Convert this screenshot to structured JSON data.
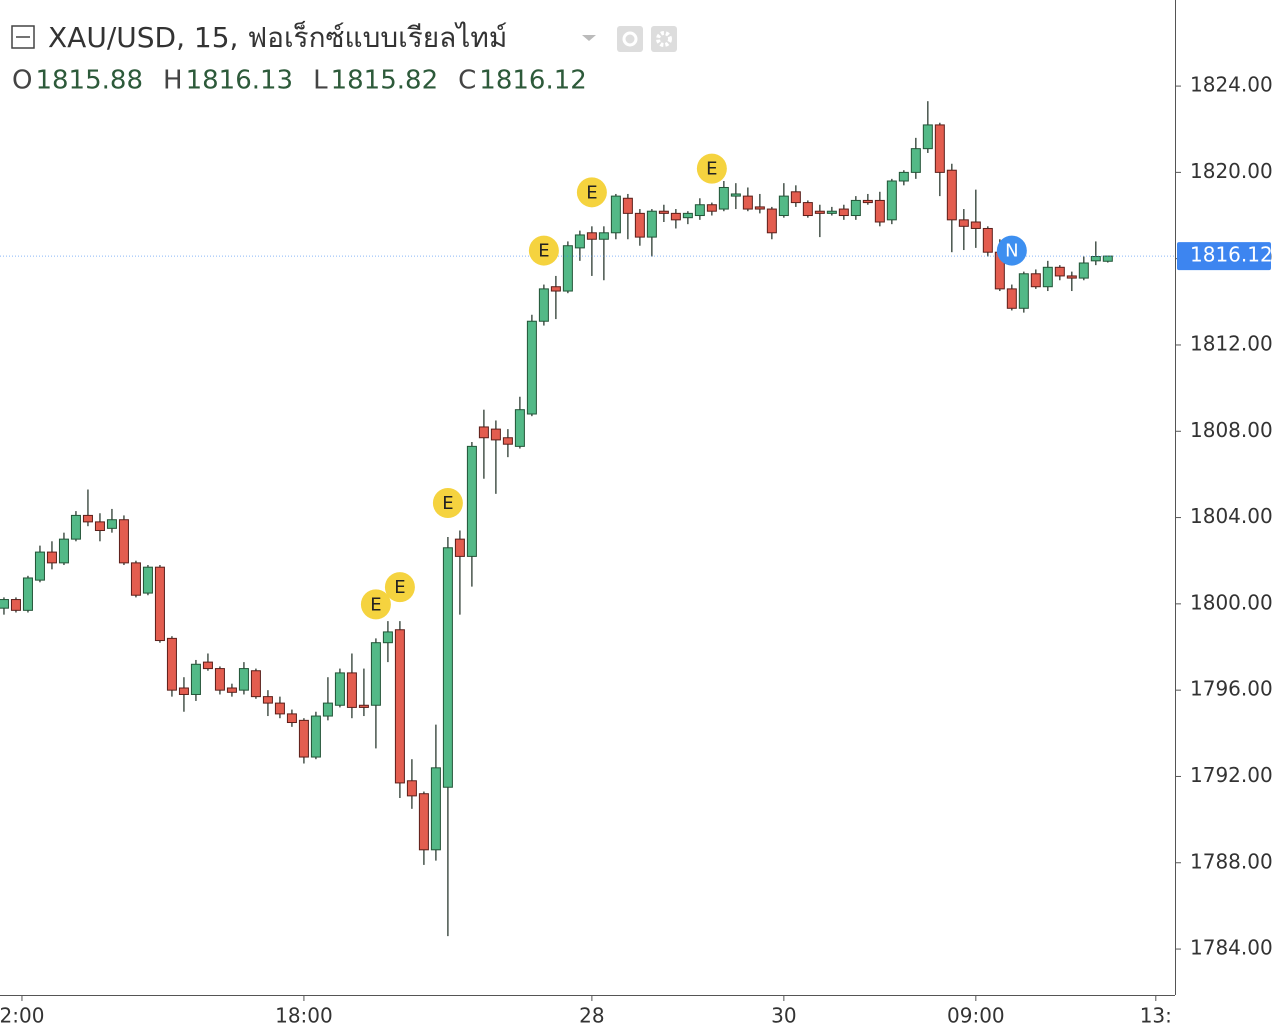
{
  "chart_data": {
    "type": "candlestick",
    "title": "XAU/USD, 15, ฟอเร็กซ์แบบเรียลไทม์",
    "legend": [
      {
        "label": "O",
        "value": 1815.88
      },
      {
        "label": "H",
        "value": 1816.13
      },
      {
        "label": "L",
        "value": 1815.82
      },
      {
        "label": "C",
        "value": 1816.12
      }
    ],
    "up_color": "#53b987",
    "down_color": "#e35d4f",
    "last_price_color": "#3d85f0",
    "ylim": [
      1781.87,
      1827.99
    ],
    "yticks": [
      {
        "value": 1784,
        "label": "1784.00"
      },
      {
        "value": 1788,
        "label": "1788.00"
      },
      {
        "value": 1792,
        "label": "1792.00"
      },
      {
        "value": 1796,
        "label": "1796.00"
      },
      {
        "value": 1800,
        "label": "1800.00"
      },
      {
        "value": 1804,
        "label": "1804.00"
      },
      {
        "value": 1808,
        "label": "1808.00"
      },
      {
        "value": 1812,
        "label": "1812.00"
      },
      {
        "value": 1816,
        "label": "1816.00"
      },
      {
        "value": 1820,
        "label": "1820.00"
      },
      {
        "value": 1824,
        "label": "1824.00"
      }
    ],
    "xlim": [
      -0.33,
      97.6
    ],
    "xticks": [
      {
        "value": 1.5,
        "label": "2:00"
      },
      {
        "value": 25,
        "label": "18:00"
      },
      {
        "value": 49,
        "label": "28"
      },
      {
        "value": 65,
        "label": "30"
      },
      {
        "value": 81,
        "label": "09:00"
      },
      {
        "value": 96,
        "label": "13:"
      }
    ],
    "ohlc": [
      [
        1799.8,
        1800.3,
        1799.5,
        1800.2
      ],
      [
        1800.2,
        1800.3,
        1799.6,
        1799.7
      ],
      [
        1799.7,
        1801.3,
        1799.6,
        1801.2
      ],
      [
        1801.1,
        1802.7,
        1801.0,
        1802.4
      ],
      [
        1802.4,
        1802.9,
        1801.6,
        1801.9
      ],
      [
        1801.9,
        1803.3,
        1801.8,
        1803.0
      ],
      [
        1803.0,
        1804.3,
        1802.9,
        1804.1
      ],
      [
        1804.1,
        1805.3,
        1803.6,
        1803.8
      ],
      [
        1803.8,
        1804.2,
        1802.9,
        1803.4
      ],
      [
        1803.5,
        1804.4,
        1803.3,
        1803.9
      ],
      [
        1803.9,
        1804.1,
        1801.8,
        1801.9
      ],
      [
        1801.9,
        1802.0,
        1800.3,
        1800.4
      ],
      [
        1800.5,
        1801.8,
        1800.4,
        1801.7
      ],
      [
        1801.7,
        1801.8,
        1798.2,
        1798.3
      ],
      [
        1798.4,
        1798.5,
        1795.7,
        1796.0
      ],
      [
        1796.1,
        1796.6,
        1795.0,
        1795.8
      ],
      [
        1795.8,
        1797.4,
        1795.5,
        1797.2
      ],
      [
        1797.3,
        1797.7,
        1796.9,
        1797.0
      ],
      [
        1797.0,
        1797.1,
        1795.8,
        1796.0
      ],
      [
        1796.1,
        1796.3,
        1795.7,
        1795.9
      ],
      [
        1796.0,
        1797.3,
        1795.8,
        1797.0
      ],
      [
        1796.9,
        1797.0,
        1795.6,
        1795.7
      ],
      [
        1795.7,
        1796.0,
        1794.8,
        1795.4
      ],
      [
        1795.4,
        1795.7,
        1794.7,
        1794.9
      ],
      [
        1794.9,
        1795.1,
        1794.3,
        1794.5
      ],
      [
        1794.6,
        1794.7,
        1792.6,
        1792.9
      ],
      [
        1792.9,
        1795.0,
        1792.8,
        1794.8
      ],
      [
        1794.8,
        1796.6,
        1794.6,
        1795.4
      ],
      [
        1795.3,
        1797.0,
        1795.2,
        1796.8
      ],
      [
        1796.8,
        1797.7,
        1794.7,
        1795.2
      ],
      [
        1795.3,
        1797.0,
        1794.8,
        1795.2
      ],
      [
        1795.3,
        1798.4,
        1793.3,
        1798.2
      ],
      [
        1798.2,
        1799.2,
        1797.3,
        1798.7
      ],
      [
        1798.8,
        1799.2,
        1791.0,
        1791.7
      ],
      [
        1791.8,
        1792.8,
        1790.5,
        1791.1
      ],
      [
        1791.2,
        1791.3,
        1787.9,
        1788.6
      ],
      [
        1788.6,
        1794.4,
        1788.1,
        1792.4
      ],
      [
        1791.5,
        1803.1,
        1784.6,
        1802.6
      ],
      [
        1803.0,
        1803.4,
        1799.5,
        1802.2
      ],
      [
        1802.2,
        1807.5,
        1800.8,
        1807.3
      ],
      [
        1808.2,
        1809.0,
        1805.8,
        1807.7
      ],
      [
        1808.1,
        1808.5,
        1805.1,
        1807.6
      ],
      [
        1807.7,
        1808.1,
        1806.8,
        1807.4
      ],
      [
        1807.3,
        1809.6,
        1807.2,
        1809.0
      ],
      [
        1808.8,
        1813.4,
        1808.7,
        1813.1
      ],
      [
        1813.1,
        1814.8,
        1812.9,
        1814.6
      ],
      [
        1814.7,
        1815.2,
        1813.2,
        1814.5
      ],
      [
        1814.5,
        1816.8,
        1814.4,
        1816.6
      ],
      [
        1816.5,
        1817.3,
        1815.9,
        1817.1
      ],
      [
        1817.2,
        1817.5,
        1815.2,
        1816.9
      ],
      [
        1816.9,
        1817.5,
        1815.0,
        1817.2
      ],
      [
        1817.2,
        1819.0,
        1816.9,
        1818.9
      ],
      [
        1818.8,
        1819.0,
        1816.9,
        1818.1
      ],
      [
        1818.1,
        1818.3,
        1816.6,
        1817.0
      ],
      [
        1817.0,
        1818.3,
        1816.1,
        1818.2
      ],
      [
        1818.2,
        1818.5,
        1817.7,
        1818.1
      ],
      [
        1818.1,
        1818.3,
        1817.4,
        1817.8
      ],
      [
        1817.9,
        1818.2,
        1817.6,
        1818.1
      ],
      [
        1818.0,
        1818.8,
        1817.8,
        1818.5
      ],
      [
        1818.5,
        1818.6,
        1818.0,
        1818.2
      ],
      [
        1818.3,
        1819.6,
        1818.2,
        1819.3
      ],
      [
        1818.9,
        1819.5,
        1818.3,
        1819.0
      ],
      [
        1818.9,
        1819.3,
        1818.2,
        1818.3
      ],
      [
        1818.4,
        1819.0,
        1818.1,
        1818.3
      ],
      [
        1818.3,
        1818.4,
        1816.9,
        1817.2
      ],
      [
        1818.0,
        1819.5,
        1817.9,
        1818.9
      ],
      [
        1819.1,
        1819.4,
        1818.4,
        1818.6
      ],
      [
        1818.6,
        1818.7,
        1817.9,
        1818.0
      ],
      [
        1818.2,
        1818.5,
        1817.0,
        1818.1
      ],
      [
        1818.1,
        1818.4,
        1818.0,
        1818.2
      ],
      [
        1818.3,
        1818.5,
        1817.8,
        1818.0
      ],
      [
        1818.0,
        1818.9,
        1817.8,
        1818.7
      ],
      [
        1818.7,
        1819.0,
        1818.5,
        1818.6
      ],
      [
        1818.7,
        1819.1,
        1817.5,
        1817.7
      ],
      [
        1817.8,
        1819.7,
        1817.6,
        1819.6
      ],
      [
        1819.6,
        1820.1,
        1819.4,
        1820.0
      ],
      [
        1820.0,
        1821.6,
        1819.7,
        1821.1
      ],
      [
        1821.1,
        1823.3,
        1820.9,
        1822.2
      ],
      [
        1822.2,
        1822.3,
        1818.9,
        1820.0
      ],
      [
        1820.1,
        1820.4,
        1816.3,
        1817.8
      ],
      [
        1817.8,
        1818.3,
        1816.4,
        1817.5
      ],
      [
        1817.7,
        1819.2,
        1816.5,
        1817.4
      ],
      [
        1817.4,
        1817.5,
        1816.1,
        1816.3
      ],
      [
        1816.3,
        1816.9,
        1814.5,
        1814.6
      ],
      [
        1814.6,
        1814.8,
        1813.6,
        1813.7
      ],
      [
        1813.7,
        1815.4,
        1813.5,
        1815.3
      ],
      [
        1815.3,
        1815.5,
        1814.6,
        1814.7
      ],
      [
        1814.7,
        1815.9,
        1814.5,
        1815.6
      ],
      [
        1815.6,
        1815.7,
        1815.0,
        1815.2
      ],
      [
        1815.2,
        1815.4,
        1814.5,
        1815.1
      ],
      [
        1815.1,
        1816.1,
        1815.0,
        1815.8
      ],
      [
        1815.9,
        1816.8,
        1815.7,
        1816.1
      ],
      [
        1815.88,
        1816.13,
        1815.82,
        1816.12
      ]
    ],
    "events": [
      {
        "index": 31,
        "label": "E",
        "color": "#f5d33f"
      },
      {
        "index": 33,
        "label": "E",
        "color": "#f5d33f"
      },
      {
        "index": 37,
        "label": "E",
        "color": "#f5d33f"
      },
      {
        "index": 45,
        "label": "E",
        "color": "#f5d33f"
      },
      {
        "index": 49,
        "label": "E",
        "color": "#f5d33f"
      },
      {
        "index": 59,
        "label": "E",
        "color": "#f5d33f"
      },
      {
        "index": 84,
        "label": "N",
        "color": "#3d8ff0"
      }
    ]
  }
}
